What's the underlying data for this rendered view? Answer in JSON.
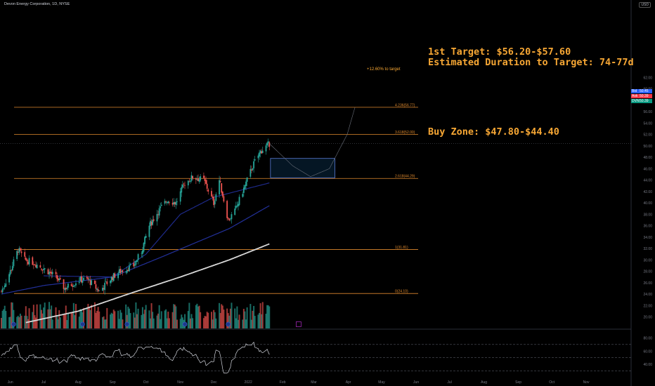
{
  "header": {
    "title": "Devon Energy Corporation, 1D, NYSE",
    "currency": "USD"
  },
  "annotations": {
    "target_line1": "1st Target: $56.20-$57.60",
    "target_line2": "Estimated Duration to Target: 74-77d",
    "buy_zone": "Buy Zone: $47.80-$44.40",
    "pct_to_target": "+12.60% to target"
  },
  "quotes": [
    {
      "key": "Bid",
      "value": "50.45",
      "color": "#2962ff"
    },
    {
      "key": "Ask",
      "value": "50.39",
      "color": "#f23645"
    },
    {
      "key": "DVN",
      "value": "50.39",
      "color": "#089981"
    }
  ],
  "colors": {
    "up": "#26a69a",
    "down": "#ef5350",
    "fib": "#e08a2e",
    "annotation": "#f7a734",
    "ma_fast": "#1e2a8a",
    "ma_mid": "#22309a",
    "ma_slow": "#d8d8d8",
    "rsi": "#d1d4dc"
  },
  "chart_data": {
    "type": "line",
    "instrument": "DVN",
    "ylim": [
      19,
      64
    ],
    "y_ticks": [
      20.0,
      22.0,
      24.0,
      26.0,
      28.0,
      30.0,
      32.0,
      34.0,
      36.0,
      38.0,
      40.0,
      42.0,
      44.0,
      46.0,
      48.0,
      50.0,
      52.0,
      54.0,
      56.0,
      58.0,
      60.0,
      62.0
    ],
    "x_ticks": [
      "Jun",
      "Jul",
      "Aug",
      "Sep",
      "Oct",
      "Nov",
      "Dec",
      "2022",
      "Feb",
      "Mar",
      "Apr",
      "May",
      "Jun",
      "Jul",
      "Aug",
      "Sep",
      "Oct",
      "Nov"
    ],
    "fib_levels": [
      {
        "label": "4.236(56.77)",
        "value": 56.77
      },
      {
        "label": "3.618(52.00)",
        "value": 52.0
      },
      {
        "label": "2.618(44.29)",
        "value": 44.29
      },
      {
        "label": "1(31.81)",
        "value": 31.81
      },
      {
        "label": "0(24.10)",
        "value": 24.1
      }
    ],
    "buy_zone": [
      44.4,
      47.8
    ],
    "target_range": [
      56.2,
      57.6
    ],
    "price_anchors": [
      [
        "2021-05-24",
        24.5
      ],
      [
        "2021-06-01",
        28.0
      ],
      [
        "2021-06-08",
        31.8
      ],
      [
        "2021-06-14",
        30.0
      ],
      [
        "2021-06-22",
        29.5
      ],
      [
        "2021-07-01",
        28.5
      ],
      [
        "2021-07-12",
        27.0
      ],
      [
        "2021-07-20",
        25.0
      ],
      [
        "2021-08-02",
        26.5
      ],
      [
        "2021-08-10",
        26.5
      ],
      [
        "2021-08-20",
        24.5
      ],
      [
        "2021-09-01",
        27.0
      ],
      [
        "2021-09-08",
        28.0
      ],
      [
        "2021-09-20",
        29.0
      ],
      [
        "2021-09-27",
        31.5
      ],
      [
        "2021-10-04",
        36.0
      ],
      [
        "2021-10-12",
        38.5
      ],
      [
        "2021-10-20",
        40.5
      ],
      [
        "2021-10-28",
        40.0
      ],
      [
        "2021-11-05",
        43.5
      ],
      [
        "2021-11-12",
        44.5
      ],
      [
        "2021-11-22",
        44.0
      ],
      [
        "2021-12-01",
        40.0
      ],
      [
        "2021-12-06",
        44.0
      ],
      [
        "2021-12-14",
        37.0
      ],
      [
        "2021-12-20",
        38.5
      ],
      [
        "2021-12-28",
        42.5
      ],
      [
        "2022-01-05",
        46.5
      ],
      [
        "2022-01-12",
        49.0
      ],
      [
        "2022-01-20",
        50.39
      ]
    ],
    "ma_fast_anchors": [
      [
        "2021-07-01",
        27.2
      ],
      [
        "2021-09-01",
        27.0
      ],
      [
        "2021-10-01",
        31.0
      ],
      [
        "2021-11-01",
        38.0
      ],
      [
        "2021-12-01",
        41.0
      ],
      [
        "2022-01-20",
        43.5
      ]
    ],
    "ma_mid_anchors": [
      [
        "2021-05-24",
        24.0
      ],
      [
        "2021-07-01",
        25.5
      ],
      [
        "2021-09-01",
        27.0
      ],
      [
        "2021-10-15",
        30.5
      ],
      [
        "2021-12-15",
        35.5
      ],
      [
        "2022-01-20",
        39.5
      ]
    ],
    "ma_slow_anchors": [
      [
        "2021-06-15",
        19.0
      ],
      [
        "2021-08-01",
        21.0
      ],
      [
        "2021-09-15",
        24.0
      ],
      [
        "2021-11-01",
        27.0
      ],
      [
        "2021-12-15",
        30.0
      ],
      [
        "2022-01-20",
        32.8
      ]
    ],
    "projection": [
      [
        "2022-01-20",
        50.4
      ],
      [
        "2022-02-10",
        46.5
      ],
      [
        "2022-02-26",
        44.6
      ],
      [
        "2022-03-15",
        46.0
      ],
      [
        "2022-03-31",
        52.0
      ],
      [
        "2022-04-07",
        56.77
      ]
    ],
    "rsi": {
      "ylim": [
        20,
        90
      ],
      "levels": [
        70,
        50,
        30
      ],
      "ticks": [
        40.0,
        60.0,
        80.0
      ]
    }
  }
}
